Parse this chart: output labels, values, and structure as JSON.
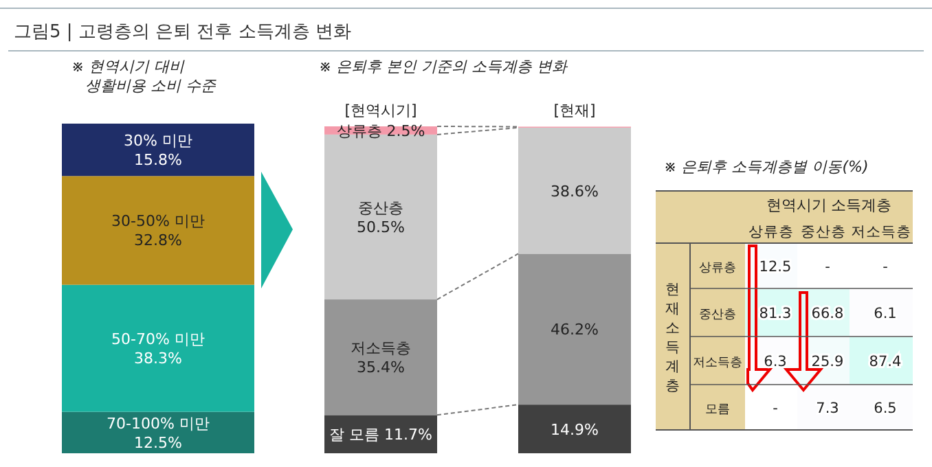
{
  "chart_data": [
    {
      "type": "bar",
      "stacked": true,
      "title": "※ 현역시기 대비\n생활비용 소비 수준",
      "annotations": [
        "그림5 | 고령층의 은퇴 전후 소득계층 변화"
      ],
      "categories": [
        null
      ],
      "series": [
        {
          "name": "70-100% 미만",
          "color": "#1d7b70",
          "values": [
            12.5
          ],
          "value_labels": [
            "12.5%"
          ]
        },
        {
          "name": "50-70% 미만",
          "color": "#19b3a0",
          "values": [
            38.3
          ],
          "value_labels": [
            "38.3%"
          ]
        },
        {
          "name": "30-50% 미만",
          "color": "#b8901f",
          "values": [
            32.8
          ],
          "value_labels": [
            "32.8%"
          ]
        },
        {
          "name": "30% 미만",
          "color": "#1f2e68",
          "values": [
            15.8
          ],
          "value_labels": [
            "15.8%"
          ]
        }
      ]
    },
    {
      "type": "bar",
      "stacked": true,
      "title": "※ 은퇴후 본인 기준의 소득계층 변화",
      "categories": [
        "[현역시기]",
        "[현재]"
      ],
      "series": [
        {
          "name": "잘 모름",
          "color": "#404040",
          "values": [
            11.7,
            14.9
          ],
          "value_labels": [
            "11.7%",
            "14.9%"
          ]
        },
        {
          "name": "저소득층",
          "color": "#969696",
          "values": [
            35.4,
            46.2
          ],
          "value_labels": [
            "35.4%",
            "46.2%"
          ]
        },
        {
          "name": "중산층",
          "color": "#cbcbcb",
          "values": [
            50.5,
            38.6
          ],
          "value_labels": [
            "50.5%",
            "38.6%"
          ]
        },
        {
          "name": "상류층",
          "color": "#f49aaa",
          "values": [
            2.5,
            0.3
          ],
          "value_labels": [
            "2.5%",
            null
          ]
        }
      ]
    },
    {
      "type": "heatmap",
      "title": "※ 은퇴후 소득계층별 이동(%)",
      "xlabel": "현역시기 소득계층",
      "ylabel": "현재 소득계층",
      "categories": [
        "상류층",
        "중산층",
        "저소득층"
      ],
      "y_categories": [
        "상류층",
        "중산층",
        "저소득층",
        "모름"
      ],
      "cells": [
        [
          12.5,
          null,
          null
        ],
        [
          81.3,
          66.8,
          6.1
        ],
        [
          6.3,
          25.9,
          87.4
        ],
        [
          null,
          7.3,
          6.5
        ]
      ],
      "cell_labels": [
        [
          "12.5",
          "-",
          "-"
        ],
        [
          "81.3",
          "66.8",
          "6.1"
        ],
        [
          "6.3",
          "25.9",
          "87.4"
        ],
        [
          "-",
          "7.3",
          "6.5"
        ]
      ]
    }
  ]
}
